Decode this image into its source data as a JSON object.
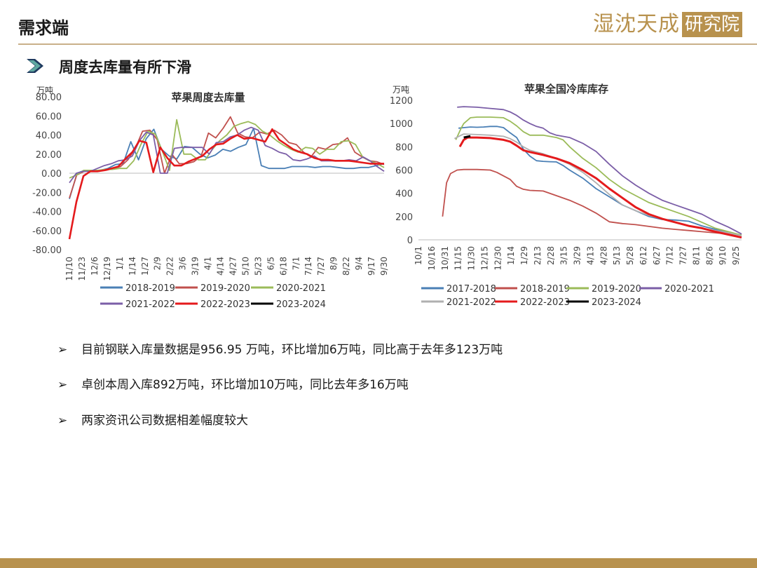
{
  "header": {
    "title": "需求端",
    "logo_part1": "湿沈天成",
    "logo_part2": "研究院"
  },
  "subtitle": "周度去库量有所下滑",
  "chart_data": [
    {
      "type": "line",
      "title": "苹果周度去库量",
      "unit": "万吨",
      "ylim": [
        -80,
        80
      ],
      "yticks": [
        "80.00",
        "60.00",
        "40.00",
        "20.00",
        "0.00",
        "-20.00",
        "-40.00",
        "-60.00",
        "-80.00"
      ],
      "x_tick_labels": [
        "11/10",
        "11/23",
        "12/6",
        "12/19",
        "1/1",
        "1/14",
        "1/27",
        "2/9",
        "2/22",
        "3/6",
        "3/19",
        "4/1",
        "4/14",
        "4/27",
        "5/10",
        "5/23",
        "6/5",
        "6/18",
        "7/1",
        "7/14",
        "7/27",
        "8/9",
        "8/22",
        "9/4",
        "9/17",
        "9/30"
      ],
      "legend": [
        "2018-2019",
        "2019-2020",
        "2020-2021",
        "2021-2022",
        "2022-2023",
        "2023-2024"
      ],
      "colors": [
        "#4a7fb5",
        "#c0504d",
        "#9bbb59",
        "#7b5ea7",
        "#e41a1c",
        "#000000"
      ],
      "series": [
        {
          "name": "2018-2019",
          "values": [
            -27,
            0,
            3,
            3,
            3,
            5,
            9,
            10,
            33,
            14,
            36,
            46,
            25,
            18,
            15,
            28,
            27,
            20,
            16,
            19,
            25,
            23,
            27,
            30,
            47,
            8,
            5,
            5,
            5,
            7,
            7,
            7,
            6,
            7,
            7,
            6,
            5,
            5,
            6,
            6,
            8,
            10
          ]
        },
        {
          "name": "2019-2020",
          "values": [
            -26,
            -2,
            2,
            3,
            3,
            3,
            5,
            7,
            14,
            26,
            44,
            45,
            35,
            0,
            20,
            10,
            10,
            12,
            18,
            42,
            37,
            47,
            59,
            42,
            38,
            37,
            43,
            41,
            45,
            40,
            32,
            30,
            22,
            17,
            27,
            25,
            30,
            31,
            37,
            22,
            17,
            13,
            12,
            9
          ]
        },
        {
          "name": "2020-2021",
          "values": [
            -5,
            -2,
            3,
            3,
            3,
            4,
            4,
            5,
            5,
            13,
            30,
            44,
            41,
            23,
            3,
            56,
            20,
            20,
            14,
            14,
            25,
            34,
            40,
            49,
            52,
            54,
            51,
            44,
            40,
            34,
            29,
            25,
            22,
            27,
            26,
            20,
            25,
            25,
            33,
            34,
            30,
            17,
            13,
            10,
            6
          ]
        },
        {
          "name": "2021-2022",
          "values": [
            -10,
            0,
            2,
            2,
            5,
            8,
            10,
            13,
            14,
            18,
            34,
            43,
            40,
            0,
            0,
            26,
            27,
            27,
            27,
            27,
            20,
            32,
            33,
            38,
            40,
            45,
            48,
            45,
            29,
            26,
            22,
            20,
            14,
            13,
            15,
            18,
            13,
            13,
            13,
            13,
            14,
            13,
            17,
            13,
            7,
            2
          ]
        },
        {
          "name": "2022-2023",
          "values": [
            -69,
            -30,
            -3,
            2,
            2,
            3,
            5,
            7,
            15,
            22,
            34,
            32,
            1,
            27,
            16,
            8,
            8,
            12,
            15,
            18,
            25,
            30,
            31,
            36,
            40,
            36,
            37,
            35,
            33,
            46,
            35,
            30,
            25,
            22,
            20,
            16,
            14,
            14,
            13,
            13,
            13,
            12,
            11,
            10,
            10,
            10
          ]
        },
        {
          "name": "2023-2024",
          "values": []
        }
      ]
    },
    {
      "type": "line",
      "title": "苹果全国冷库库存",
      "unit": "万吨",
      "ylim": [
        0,
        1200
      ],
      "yticks": [
        "1200",
        "1000",
        "800",
        "600",
        "400",
        "200",
        "0"
      ],
      "x_tick_labels": [
        "10/1",
        "10/16",
        "10/31",
        "11/15",
        "11/30",
        "12/15",
        "12/30",
        "1/14",
        "1/29",
        "2/13",
        "2/28",
        "3/15",
        "3/29",
        "4/13",
        "4/28",
        "5/13",
        "5/28",
        "6/12",
        "6/27",
        "7/12",
        "7/27",
        "8/11",
        "8/26",
        "9/10",
        "9/25"
      ],
      "legend": [
        "2017-2018",
        "2018-2019",
        "2019-2020",
        "2020-2021",
        "2021-2022",
        "2022-2023",
        "2023-2024"
      ],
      "colors": [
        "#4a7fb5",
        "#c0504d",
        "#9bbb59",
        "#7b5ea7",
        "#b0b0b0",
        "#e41a1c",
        "#000000"
      ],
      "series": [
        {
          "name": "2017-2018",
          "values": [
            [
              2.6,
              960
            ],
            [
              3,
              965
            ],
            [
              3.5,
              970
            ],
            [
              4,
              968
            ],
            [
              4.5,
              970
            ],
            [
              5,
              975
            ],
            [
              5.5,
              975
            ],
            [
              6,
              965
            ],
            [
              6.5,
              920
            ],
            [
              7,
              880
            ],
            [
              7.5,
              780
            ],
            [
              8,
              720
            ],
            [
              8.5,
              680
            ],
            [
              9,
              675
            ],
            [
              9.5,
              672
            ],
            [
              10,
              670
            ],
            [
              10.5,
              640
            ],
            [
              11,
              600
            ],
            [
              12,
              530
            ],
            [
              13,
              440
            ],
            [
              14,
              370
            ],
            [
              15,
              300
            ],
            [
              16,
              250
            ],
            [
              17,
              200
            ],
            [
              18,
              175
            ],
            [
              19,
              170
            ],
            [
              20,
              160
            ],
            [
              21,
              120
            ],
            [
              22,
              90
            ],
            [
              23,
              60
            ],
            [
              24,
              40
            ]
          ]
        },
        {
          "name": "2018-2019",
          "values": [
            [
              1.4,
              200
            ],
            [
              1.7,
              490
            ],
            [
              2,
              570
            ],
            [
              2.5,
              600
            ],
            [
              3,
              605
            ],
            [
              4,
              605
            ],
            [
              5,
              600
            ],
            [
              5.5,
              580
            ],
            [
              6,
              550
            ],
            [
              6.5,
              520
            ],
            [
              7,
              460
            ],
            [
              7.5,
              435
            ],
            [
              8,
              425
            ],
            [
              9,
              420
            ],
            [
              10,
              380
            ],
            [
              11,
              340
            ],
            [
              12,
              290
            ],
            [
              13,
              230
            ],
            [
              14,
              155
            ],
            [
              15,
              140
            ],
            [
              16,
              130
            ],
            [
              17,
              115
            ],
            [
              18,
              100
            ],
            [
              19,
              90
            ],
            [
              20,
              80
            ],
            [
              21,
              70
            ],
            [
              22,
              60
            ],
            [
              23,
              50
            ],
            [
              24,
              40
            ]
          ]
        },
        {
          "name": "2019-2020",
          "values": [
            [
              2.4,
              860
            ],
            [
              2.8,
              960
            ],
            [
              3,
              1000
            ],
            [
              3.5,
              1050
            ],
            [
              4,
              1055
            ],
            [
              5,
              1055
            ],
            [
              6,
              1050
            ],
            [
              6.5,
              1020
            ],
            [
              7,
              980
            ],
            [
              7.5,
              930
            ],
            [
              8,
              900
            ],
            [
              9,
              900
            ],
            [
              10,
              880
            ],
            [
              10.5,
              860
            ],
            [
              11,
              800
            ],
            [
              12,
              700
            ],
            [
              13,
              620
            ],
            [
              14,
              520
            ],
            [
              15,
              440
            ],
            [
              16,
              380
            ],
            [
              17,
              320
            ],
            [
              18,
              280
            ],
            [
              19,
              240
            ],
            [
              20,
              200
            ],
            [
              21,
              150
            ],
            [
              22,
              100
            ],
            [
              23,
              70
            ],
            [
              24,
              40
            ]
          ]
        },
        {
          "name": "2020-2021",
          "values": [
            [
              2.5,
              1140
            ],
            [
              3,
              1145
            ],
            [
              4,
              1140
            ],
            [
              5,
              1130
            ],
            [
              6,
              1120
            ],
            [
              6.5,
              1100
            ],
            [
              7,
              1070
            ],
            [
              7.5,
              1030
            ],
            [
              8,
              1000
            ],
            [
              8.5,
              975
            ],
            [
              9,
              960
            ],
            [
              9.5,
              920
            ],
            [
              10,
              900
            ],
            [
              11,
              880
            ],
            [
              12,
              830
            ],
            [
              13,
              760
            ],
            [
              14,
              650
            ],
            [
              15,
              550
            ],
            [
              16,
              470
            ],
            [
              17,
              400
            ],
            [
              18,
              340
            ],
            [
              19,
              300
            ],
            [
              20,
              260
            ],
            [
              21,
              220
            ],
            [
              22,
              160
            ],
            [
              23,
              110
            ],
            [
              24,
              50
            ]
          ]
        },
        {
          "name": "2021-2022",
          "values": [
            [
              2.3,
              870
            ],
            [
              2.8,
              900
            ],
            [
              3,
              910
            ],
            [
              4,
              905
            ],
            [
              5,
              900
            ],
            [
              6,
              890
            ],
            [
              6.5,
              870
            ],
            [
              7,
              840
            ],
            [
              7.5,
              800
            ],
            [
              8,
              770
            ],
            [
              9,
              740
            ],
            [
              10,
              700
            ],
            [
              11,
              650
            ],
            [
              12,
              580
            ],
            [
              13,
              490
            ],
            [
              14,
              390
            ],
            [
              15,
              300
            ],
            [
              16,
              250
            ],
            [
              17,
              210
            ],
            [
              18,
              180
            ],
            [
              19,
              150
            ],
            [
              20,
              120
            ],
            [
              21,
              100
            ],
            [
              22,
              80
            ],
            [
              23,
              60
            ],
            [
              24,
              35
            ]
          ]
        },
        {
          "name": "2022-2023",
          "values": [
            [
              2.7,
              800
            ],
            [
              3,
              860
            ],
            [
              3.3,
              880
            ],
            [
              4,
              880
            ],
            [
              5,
              875
            ],
            [
              6,
              860
            ],
            [
              6.5,
              845
            ],
            [
              7,
              810
            ],
            [
              7.5,
              770
            ],
            [
              8,
              755
            ],
            [
              9,
              730
            ],
            [
              10,
              700
            ],
            [
              11,
              660
            ],
            [
              12,
              600
            ],
            [
              13,
              530
            ],
            [
              14,
              440
            ],
            [
              15,
              360
            ],
            [
              16,
              280
            ],
            [
              17,
              220
            ],
            [
              18,
              180
            ],
            [
              19,
              150
            ],
            [
              20,
              120
            ],
            [
              21,
              100
            ],
            [
              22,
              70
            ],
            [
              23,
              45
            ],
            [
              24,
              20
            ]
          ]
        },
        {
          "name": "2023-2024",
          "values": [
            [
              3.0,
              880
            ],
            [
              3.5,
              892
            ]
          ]
        }
      ]
    }
  ],
  "bullets": [
    "目前钢联入库量数据是956.95 万吨，环比增加6万吨，同比高于去年多123万吨",
    "卓创本周入库892万吨，环比增加10万吨，同比去年多16万吨",
    "两家资讯公司数据相差幅度较大"
  ],
  "bullet_marker": "➢"
}
